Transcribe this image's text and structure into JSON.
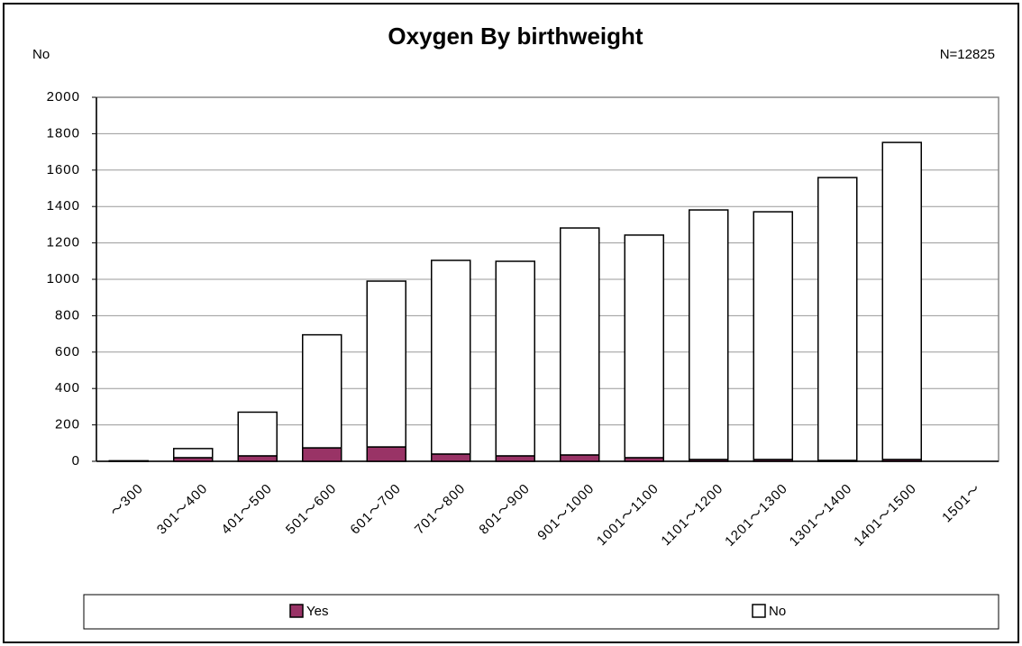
{
  "chart_data": {
    "type": "stacked_bar",
    "title": "Oxygen By birthweight",
    "y_label": "No",
    "annotation": "N=12825",
    "categories": [
      "～300",
      "301～400",
      "401～500",
      "501～600",
      "601～700",
      "701～800",
      "801～900",
      "901～1000",
      "1001～1100",
      "1101～1200",
      "1201～1300",
      "1301～1400",
      "1401～1500",
      "1501～"
    ],
    "series": [
      {
        "name": "Yes",
        "color": "#993366",
        "values": [
          0,
          20,
          30,
          74,
          79,
          40,
          30,
          35,
          20,
          10,
          10,
          5,
          10,
          0
        ]
      },
      {
        "name": "No",
        "color": "#ffffff",
        "values": [
          3,
          50,
          240,
          621,
          911,
          1064,
          1069,
          1247,
          1223,
          1371,
          1361,
          1554,
          1742,
          0
        ]
      }
    ],
    "ylim": [
      0,
      2000
    ],
    "yticks": [
      0,
      200,
      400,
      600,
      800,
      1000,
      1200,
      1400,
      1600,
      1800,
      2000
    ],
    "grid": true,
    "legend": "bottom"
  }
}
